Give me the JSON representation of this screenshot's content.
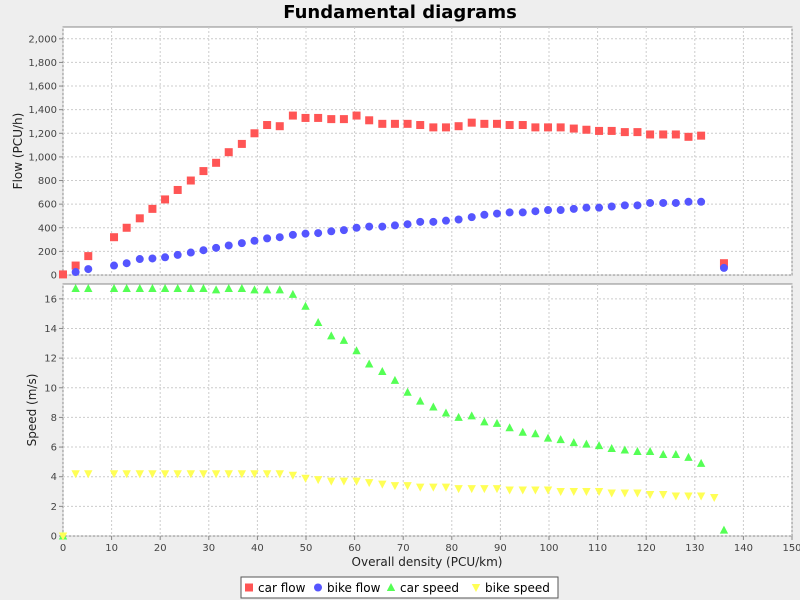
{
  "chart_data": {
    "type": "scatter",
    "title": "Fundamental diagrams",
    "xlabel": "Overall density (PCU/km)",
    "xlim": [
      0,
      150
    ],
    "x_ticks": [
      "0",
      "10",
      "20",
      "30",
      "40",
      "50",
      "60",
      "70",
      "80",
      "90",
      "100",
      "110",
      "120",
      "130",
      "140",
      "150"
    ],
    "grid": true,
    "legend_position": "bottom",
    "subplots": [
      {
        "ylabel": "Flow (PCU/h)",
        "ylim": [
          0,
          2100
        ],
        "y_ticks": [
          "0",
          "200",
          "400",
          "600",
          "800",
          "1,000",
          "1,200",
          "1,400",
          "1,600",
          "1,800",
          "2,000"
        ],
        "series": [
          "car flow",
          "bike flow"
        ]
      },
      {
        "ylabel": "Speed (m/s)",
        "ylim": [
          0,
          17
        ],
        "y_ticks": [
          "0",
          "2",
          "4",
          "6",
          "8",
          "10",
          "12",
          "14",
          "16"
        ],
        "series": [
          "car speed",
          "bike speed"
        ]
      }
    ],
    "series": [
      {
        "name": "car flow",
        "color": "#ff5555",
        "marker": "square",
        "subplot": 0,
        "points": [
          [
            0,
            5
          ],
          [
            2.6,
            80
          ],
          [
            5.2,
            160
          ],
          [
            10.5,
            320
          ],
          [
            13.1,
            400
          ],
          [
            15.8,
            480
          ],
          [
            18.4,
            560
          ],
          [
            21,
            640
          ],
          [
            23.6,
            720
          ],
          [
            26.3,
            800
          ],
          [
            28.9,
            880
          ],
          [
            31.5,
            950
          ],
          [
            34.1,
            1040
          ],
          [
            36.8,
            1110
          ],
          [
            39.4,
            1200
          ],
          [
            42,
            1270
          ],
          [
            44.6,
            1260
          ],
          [
            47.3,
            1350
          ],
          [
            49.9,
            1330
          ],
          [
            52.5,
            1330
          ],
          [
            55.2,
            1320
          ],
          [
            57.8,
            1320
          ],
          [
            60.4,
            1350
          ],
          [
            63,
            1310
          ],
          [
            65.7,
            1280
          ],
          [
            68.3,
            1280
          ],
          [
            70.9,
            1280
          ],
          [
            73.5,
            1270
          ],
          [
            76.2,
            1250
          ],
          [
            78.8,
            1250
          ],
          [
            81.4,
            1260
          ],
          [
            84.1,
            1290
          ],
          [
            86.7,
            1280
          ],
          [
            89.3,
            1280
          ],
          [
            91.9,
            1270
          ],
          [
            94.6,
            1270
          ],
          [
            97.2,
            1250
          ],
          [
            99.8,
            1250
          ],
          [
            102.4,
            1250
          ],
          [
            105.1,
            1240
          ],
          [
            107.7,
            1230
          ],
          [
            110.3,
            1220
          ],
          [
            112.9,
            1220
          ],
          [
            115.6,
            1210
          ],
          [
            118.2,
            1210
          ],
          [
            120.8,
            1190
          ],
          [
            123.5,
            1190
          ],
          [
            126.1,
            1190
          ],
          [
            128.7,
            1170
          ],
          [
            131.3,
            1180
          ],
          [
            136,
            100
          ]
        ]
      },
      {
        "name": "bike flow",
        "color": "#5555ff",
        "marker": "circle",
        "subplot": 0,
        "points": [
          [
            2.6,
            25
          ],
          [
            5.2,
            50
          ],
          [
            10.5,
            80
          ],
          [
            13.1,
            100
          ],
          [
            15.8,
            135
          ],
          [
            18.4,
            140
          ],
          [
            21,
            150
          ],
          [
            23.6,
            170
          ],
          [
            26.3,
            190
          ],
          [
            28.9,
            210
          ],
          [
            31.5,
            230
          ],
          [
            34.1,
            250
          ],
          [
            36.8,
            270
          ],
          [
            39.4,
            290
          ],
          [
            42,
            310
          ],
          [
            44.6,
            320
          ],
          [
            47.3,
            340
          ],
          [
            49.9,
            350
          ],
          [
            52.5,
            355
          ],
          [
            55.2,
            370
          ],
          [
            57.8,
            380
          ],
          [
            60.4,
            400
          ],
          [
            63,
            410
          ],
          [
            65.7,
            410
          ],
          [
            68.3,
            420
          ],
          [
            70.9,
            430
          ],
          [
            73.5,
            450
          ],
          [
            76.2,
            450
          ],
          [
            78.8,
            460
          ],
          [
            81.4,
            470
          ],
          [
            84.1,
            490
          ],
          [
            86.7,
            510
          ],
          [
            89.3,
            520
          ],
          [
            91.9,
            530
          ],
          [
            94.6,
            530
          ],
          [
            97.2,
            540
          ],
          [
            99.8,
            550
          ],
          [
            102.4,
            550
          ],
          [
            105.1,
            560
          ],
          [
            107.7,
            570
          ],
          [
            110.3,
            570
          ],
          [
            112.9,
            580
          ],
          [
            115.6,
            590
          ],
          [
            118.2,
            590
          ],
          [
            120.8,
            610
          ],
          [
            123.5,
            610
          ],
          [
            126.1,
            610
          ],
          [
            128.7,
            620
          ],
          [
            131.3,
            620
          ],
          [
            136,
            60
          ]
        ]
      },
      {
        "name": "car speed",
        "color": "#55ff55",
        "marker": "triangle",
        "subplot": 1,
        "points": [
          [
            0,
            0
          ],
          [
            2.6,
            16.7
          ],
          [
            5.2,
            16.7
          ],
          [
            10.5,
            16.7
          ],
          [
            13.1,
            16.7
          ],
          [
            15.8,
            16.7
          ],
          [
            18.4,
            16.7
          ],
          [
            21,
            16.7
          ],
          [
            23.6,
            16.7
          ],
          [
            26.3,
            16.7
          ],
          [
            28.9,
            16.7
          ],
          [
            31.5,
            16.6
          ],
          [
            34.1,
            16.7
          ],
          [
            36.8,
            16.7
          ],
          [
            39.4,
            16.6
          ],
          [
            42,
            16.6
          ],
          [
            44.6,
            16.6
          ],
          [
            47.3,
            16.3
          ],
          [
            49.9,
            15.5
          ],
          [
            52.5,
            14.4
          ],
          [
            55.2,
            13.5
          ],
          [
            57.8,
            13.2
          ],
          [
            60.4,
            12.5
          ],
          [
            63,
            11.6
          ],
          [
            65.7,
            11.1
          ],
          [
            68.3,
            10.5
          ],
          [
            70.9,
            9.7
          ],
          [
            73.5,
            9.1
          ],
          [
            76.2,
            8.7
          ],
          [
            78.8,
            8.3
          ],
          [
            81.4,
            8.0
          ],
          [
            84.1,
            8.1
          ],
          [
            86.7,
            7.7
          ],
          [
            89.3,
            7.6
          ],
          [
            91.9,
            7.3
          ],
          [
            94.6,
            7.0
          ],
          [
            97.2,
            6.9
          ],
          [
            99.8,
            6.6
          ],
          [
            102.4,
            6.5
          ],
          [
            105.1,
            6.3
          ],
          [
            107.7,
            6.2
          ],
          [
            110.3,
            6.1
          ],
          [
            112.9,
            5.9
          ],
          [
            115.6,
            5.8
          ],
          [
            118.2,
            5.7
          ],
          [
            120.8,
            5.7
          ],
          [
            123.5,
            5.5
          ],
          [
            126.1,
            5.5
          ],
          [
            128.7,
            5.3
          ],
          [
            131.3,
            4.9
          ],
          [
            136,
            0.4
          ]
        ]
      },
      {
        "name": "bike speed",
        "color": "#ffff55",
        "marker": "triangle-down",
        "subplot": 1,
        "points": [
          [
            0,
            0
          ],
          [
            2.6,
            4.2
          ],
          [
            5.2,
            4.2
          ],
          [
            10.5,
            4.2
          ],
          [
            13.1,
            4.2
          ],
          [
            15.8,
            4.2
          ],
          [
            18.4,
            4.2
          ],
          [
            21,
            4.2
          ],
          [
            23.6,
            4.2
          ],
          [
            26.3,
            4.2
          ],
          [
            28.9,
            4.2
          ],
          [
            31.5,
            4.2
          ],
          [
            34.1,
            4.2
          ],
          [
            36.8,
            4.2
          ],
          [
            39.4,
            4.2
          ],
          [
            42,
            4.2
          ],
          [
            44.6,
            4.2
          ],
          [
            47.3,
            4.1
          ],
          [
            49.9,
            3.9
          ],
          [
            52.5,
            3.8
          ],
          [
            55.2,
            3.7
          ],
          [
            57.8,
            3.7
          ],
          [
            60.4,
            3.7
          ],
          [
            63,
            3.6
          ],
          [
            65.7,
            3.5
          ],
          [
            68.3,
            3.4
          ],
          [
            70.9,
            3.4
          ],
          [
            73.5,
            3.3
          ],
          [
            76.2,
            3.3
          ],
          [
            78.8,
            3.3
          ],
          [
            81.4,
            3.2
          ],
          [
            84.1,
            3.2
          ],
          [
            86.7,
            3.2
          ],
          [
            89.3,
            3.2
          ],
          [
            91.9,
            3.1
          ],
          [
            94.6,
            3.1
          ],
          [
            97.2,
            3.1
          ],
          [
            99.8,
            3.1
          ],
          [
            102.4,
            3.0
          ],
          [
            105.1,
            3.0
          ],
          [
            107.7,
            3.0
          ],
          [
            110.3,
            3.0
          ],
          [
            112.9,
            2.9
          ],
          [
            115.6,
            2.9
          ],
          [
            118.2,
            2.9
          ],
          [
            120.8,
            2.8
          ],
          [
            123.5,
            2.8
          ],
          [
            126.1,
            2.7
          ],
          [
            128.7,
            2.7
          ],
          [
            131.3,
            2.7
          ],
          [
            134,
            2.6
          ]
        ]
      }
    ]
  }
}
